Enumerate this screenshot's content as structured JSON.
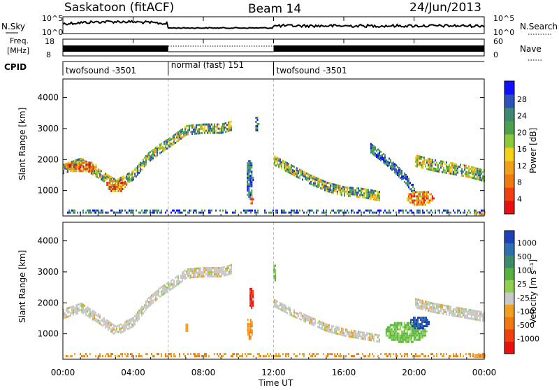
{
  "header": {
    "title": "Saskatoon (fitACF)",
    "beam": "Beam 14",
    "date": "24/Jun/2013"
  },
  "noise_panel": {
    "left_label": "N.Sky",
    "right_label": "N.Search",
    "left_ticks": [
      "10^5",
      "10^0"
    ],
    "right_ticks": [
      "10^5",
      "10^0"
    ]
  },
  "freq_panel": {
    "left_label_1": "Freq.",
    "left_label_2": "[MHz]",
    "right_label": "Nave",
    "left_ticks": [
      "18",
      "8"
    ],
    "right_ticks": [
      "60",
      "0"
    ]
  },
  "cpid_panel": {
    "label": "CPID",
    "segments": [
      {
        "text": "twofsound -3501",
        "start_hour": 0,
        "end_hour": 6
      },
      {
        "text": "normal (fast) 151",
        "start_hour": 6,
        "end_hour": 12
      },
      {
        "text": "twofsound -3501",
        "start_hour": 12,
        "end_hour": 24
      }
    ]
  },
  "x_axis": {
    "label": "Time UT",
    "ticks": [
      "00:00",
      "04:00",
      "08:00",
      "12:00",
      "16:00",
      "20:00",
      "00:00"
    ]
  },
  "chart_data": [
    {
      "type": "heatmap",
      "name": "power",
      "ylabel": "Slant Range [km]",
      "yticks": [
        1000,
        2000,
        3000,
        4000
      ],
      "ylim": [
        180,
        4600
      ],
      "xlim_hours": [
        0,
        24
      ],
      "colorbar_label": "Power [dB]",
      "colorbar_ticks": [
        4,
        8,
        12,
        16,
        20,
        24,
        28
      ],
      "colorbar_colors": [
        "#1010ff",
        "#2a52b8",
        "#3e8a6e",
        "#4ca24c",
        "#8cc83c",
        "#f4d21c",
        "#f0a01c",
        "#ee7a10",
        "#f04010",
        "#e81010"
      ],
      "features": [
        {
          "kind": "band",
          "points": [
            [
              0,
              1700
            ],
            [
              1,
              1900
            ],
            [
              2,
              1550
            ],
            [
              3,
              1200
            ],
            [
              4,
              1500
            ],
            [
              4.8,
              2050
            ],
            [
              5.5,
              2350
            ],
            [
              6.3,
              2650
            ],
            [
              7,
              2950
            ],
            [
              8,
              3000
            ],
            [
              9,
              3000
            ],
            [
              9.6,
              3100
            ]
          ],
          "width": 330,
          "level": "mid"
        },
        {
          "kind": "band",
          "points": [
            [
              12,
              2000
            ],
            [
              13,
              1700
            ],
            [
              14,
              1400
            ],
            [
              15,
              1150
            ],
            [
              16,
              1000
            ],
            [
              17,
              950
            ],
            [
              18,
              850
            ]
          ],
          "width": 280,
          "level": "mid"
        },
        {
          "kind": "band",
          "points": [
            [
              17.5,
              2400
            ],
            [
              18.5,
              1950
            ],
            [
              19.5,
              1400
            ],
            [
              20,
              1000
            ]
          ],
          "width": 280,
          "level": "low"
        },
        {
          "kind": "band",
          "points": [
            [
              20,
              2000
            ],
            [
              21,
              1850
            ],
            [
              22,
              1750
            ],
            [
              23,
              1650
            ],
            [
              24,
              1500
            ]
          ],
          "width": 350,
          "level": "mid"
        },
        {
          "kind": "blob",
          "x": 10.7,
          "y": 750,
          "rx": 0.12,
          "ry": 140,
          "level": "high"
        },
        {
          "kind": "blob",
          "x": 10.6,
          "y": 1400,
          "rx": 0.2,
          "ry": 650,
          "level": "low"
        },
        {
          "kind": "blob",
          "x": 11.0,
          "y": 3200,
          "rx": 0.12,
          "ry": 250,
          "level": "low"
        },
        {
          "kind": "blob",
          "x": 20.3,
          "y": 800,
          "rx": 0.8,
          "ry": 250,
          "level": "high"
        },
        {
          "kind": "blob",
          "x": 23.7,
          "y": 300,
          "rx": 0.35,
          "ry": 100,
          "level": "high"
        },
        {
          "kind": "blob",
          "x": 1.0,
          "y": 1800,
          "rx": 0.9,
          "ry": 200,
          "level": "high"
        },
        {
          "kind": "blob",
          "x": 3.0,
          "y": 1200,
          "rx": 0.6,
          "ry": 220,
          "level": "high"
        },
        {
          "kind": "strip",
          "y": 330,
          "height": 120,
          "x0": 0,
          "x1": 24,
          "level": "low"
        }
      ]
    },
    {
      "type": "heatmap",
      "name": "velocity",
      "ylabel": "Slant Range [km]",
      "yticks": [
        1000,
        2000,
        3000,
        4000
      ],
      "ylim": [
        180,
        4600
      ],
      "xlim_hours": [
        0,
        24
      ],
      "colorbar_label": "Velocity [m s⁻¹]",
      "colorbar_ticks": [
        1000,
        500,
        100,
        25,
        -25,
        -100,
        -500,
        -1000
      ],
      "colorbar_colors": [
        "#2040b8",
        "#2c70b0",
        "#3c8c6c",
        "#58b040",
        "#90d050",
        "#c8c8c8",
        "#f0a020",
        "#f07810",
        "#f04010",
        "#e81010"
      ],
      "features": [
        {
          "kind": "band",
          "points": [
            [
              0,
              1650
            ],
            [
              1,
              1850
            ],
            [
              2,
              1500
            ],
            [
              3,
              1100
            ],
            [
              4,
              1400
            ],
            [
              4.8,
              2000
            ],
            [
              5.5,
              2350
            ],
            [
              6.3,
              2650
            ],
            [
              7,
              2950
            ],
            [
              8,
              3000
            ],
            [
              9,
              3000
            ],
            [
              9.6,
              3100
            ]
          ],
          "width": 320,
          "level": "gray"
        },
        {
          "kind": "band",
          "points": [
            [
              12,
              2000
            ],
            [
              13,
              1700
            ],
            [
              14,
              1450
            ],
            [
              15,
              1200
            ],
            [
              16,
              1050
            ],
            [
              17,
              950
            ],
            [
              18,
              850
            ]
          ],
          "width": 260,
          "level": "gray"
        },
        {
          "kind": "band",
          "points": [
            [
              20,
              2000
            ],
            [
              21,
              1850
            ],
            [
              22,
              1750
            ],
            [
              23,
              1650
            ],
            [
              24,
              1550
            ]
          ],
          "width": 330,
          "level": "gray"
        },
        {
          "kind": "blob",
          "x": 10.7,
          "y": 2200,
          "rx": 0.15,
          "ry": 350,
          "level": "red"
        },
        {
          "kind": "blob",
          "x": 10.6,
          "y": 1200,
          "rx": 0.18,
          "ry": 350,
          "level": "orange"
        },
        {
          "kind": "blob",
          "x": 7.0,
          "y": 1250,
          "rx": 0.1,
          "ry": 150,
          "level": "orange"
        },
        {
          "kind": "blob",
          "x": 12.0,
          "y": 3000,
          "rx": 0.1,
          "ry": 300,
          "level": "green"
        },
        {
          "kind": "blob",
          "x": 19.5,
          "y": 1100,
          "rx": 1.2,
          "ry": 350,
          "level": "green"
        },
        {
          "kind": "blob",
          "x": 20.3,
          "y": 1400,
          "rx": 0.6,
          "ry": 220,
          "level": "blue"
        },
        {
          "kind": "blob",
          "x": 23.7,
          "y": 320,
          "rx": 0.35,
          "ry": 100,
          "level": "orange"
        },
        {
          "kind": "strip",
          "y": 330,
          "height": 100,
          "x0": 0,
          "x1": 24,
          "level": "orange"
        }
      ]
    }
  ]
}
